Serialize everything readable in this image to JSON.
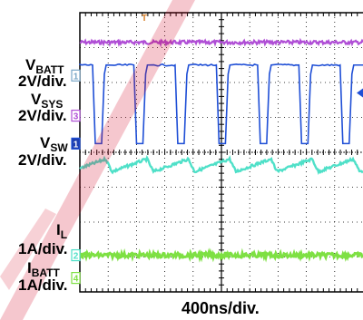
{
  "chart_data": {
    "type": "line",
    "title": "",
    "xlabel": "400ns/div.",
    "grid": true,
    "x_divisions": 10,
    "y_divisions": 8,
    "colors": {
      "background": "#ffffff",
      "grid": "#000000",
      "watermark": "#d0001e"
    },
    "trigger_marker": "T",
    "channels": [
      {
        "id": "vsys",
        "name": "V_SYS",
        "label_main": "V",
        "label_sub": "SYS",
        "scale": "2V/div.",
        "marker": "3",
        "color": "#b04fd6",
        "waveform": "dc-noise"
      },
      {
        "id": "vsw",
        "name": "V_SW",
        "label_main": "V",
        "label_sub": "SW",
        "scale": "2V/div.",
        "marker": "1",
        "color": "#1f4fd6",
        "waveform": "switching-pulse",
        "pulses_per_screen": 7
      },
      {
        "id": "vbatt",
        "name": "V_BATT",
        "label_main": "V",
        "label_sub": "BATT",
        "scale": "2V/div.",
        "marker": "1",
        "color": "#7aa7c7",
        "waveform": "reference-marker"
      },
      {
        "id": "il",
        "name": "I_L",
        "label_main": "I",
        "label_sub": "L",
        "scale": "1A/div.",
        "marker": "2",
        "color": "#4fe0c8",
        "waveform": "triangle-ripple",
        "ripple_periods": 7
      },
      {
        "id": "ibatt",
        "name": "I_BATT",
        "label_main": "I",
        "label_sub": "BATT",
        "scale": "1A/div.",
        "marker": "4",
        "color": "#7ee043",
        "waveform": "dc-noise"
      }
    ]
  }
}
